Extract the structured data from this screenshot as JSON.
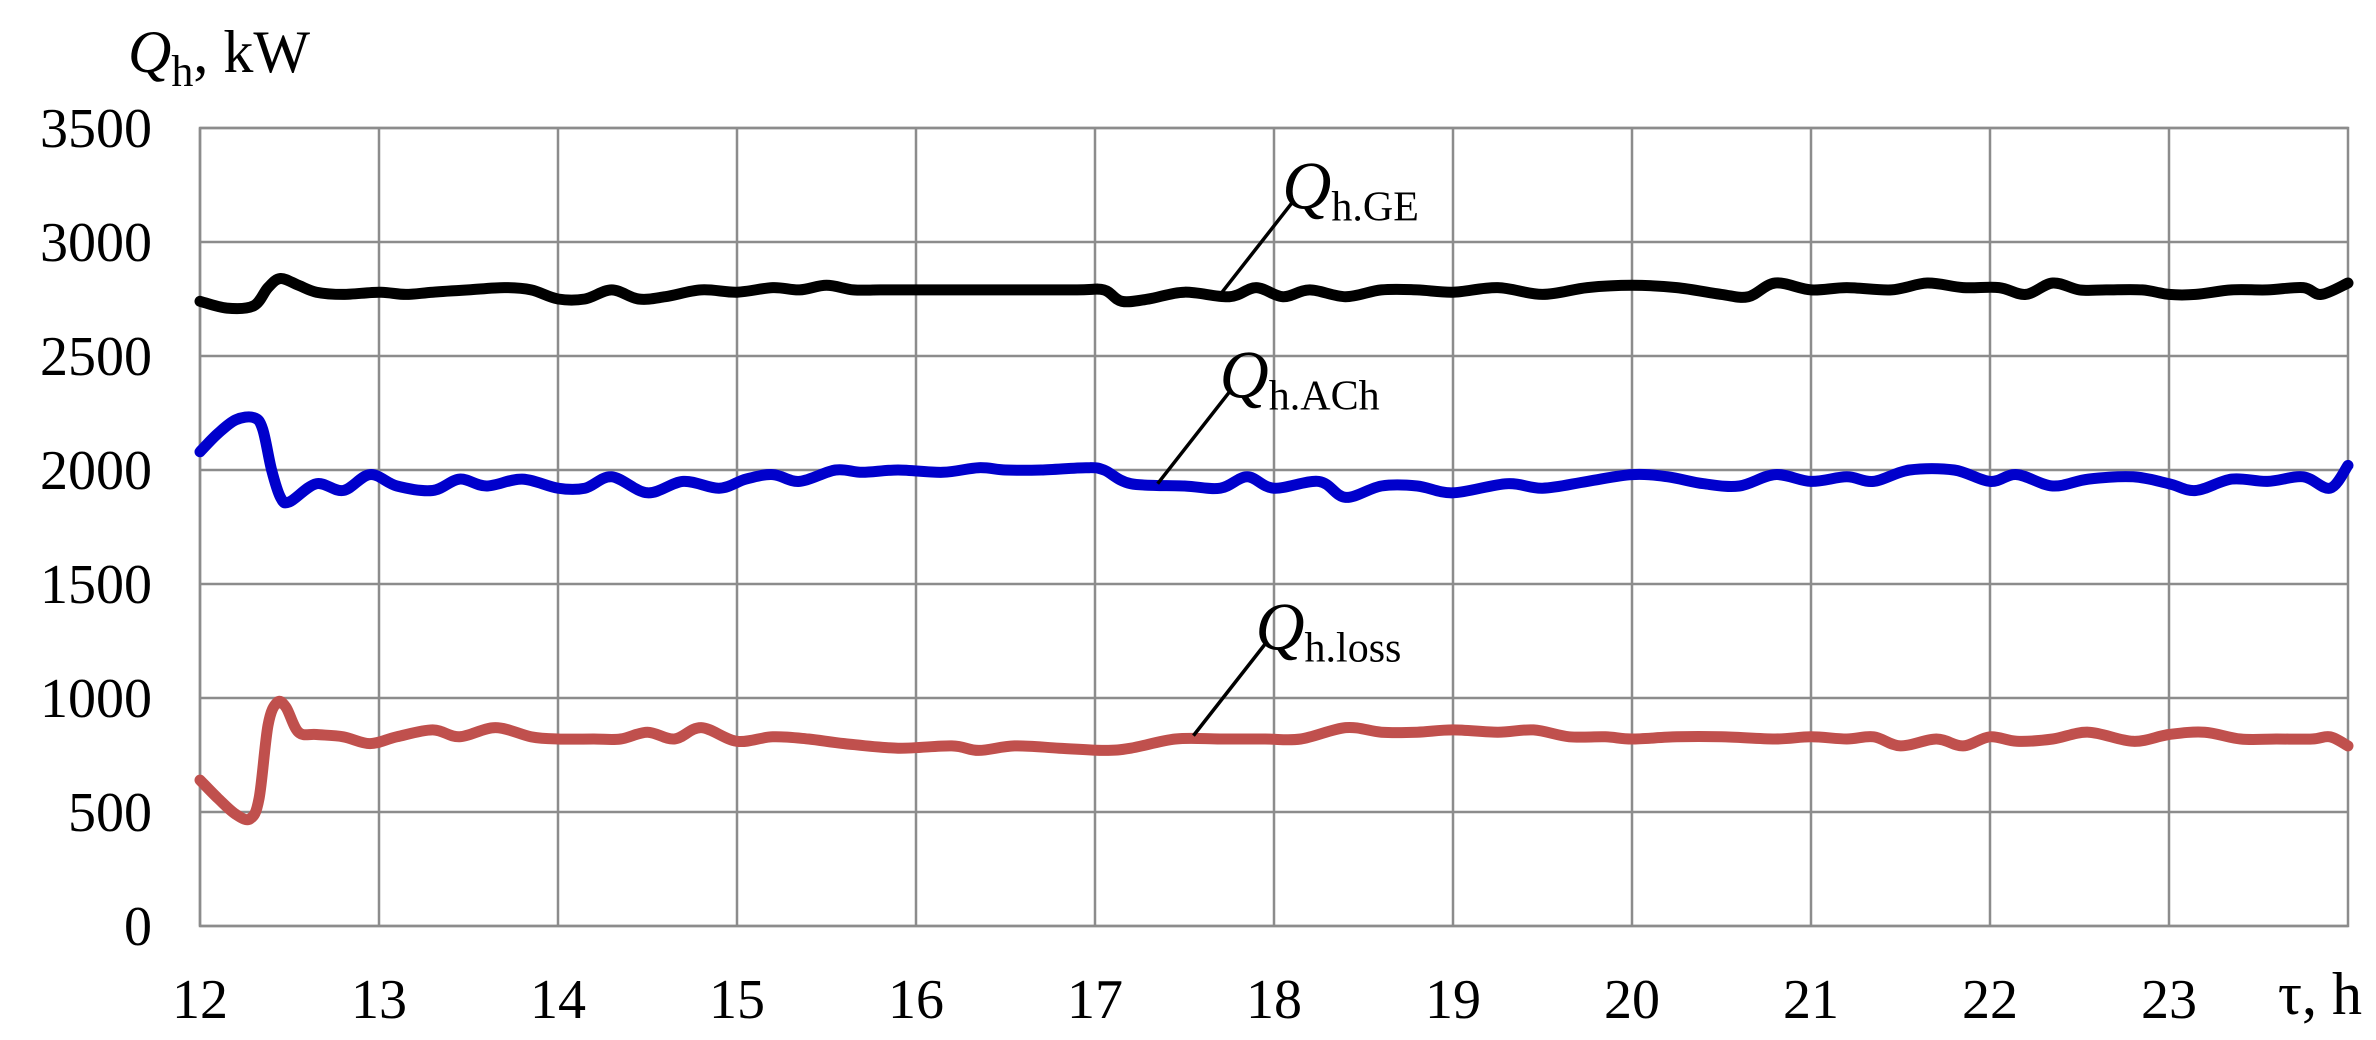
{
  "chart_data": {
    "type": "line",
    "ylabel": {
      "symbol": "Q",
      "subscript": "h",
      "unit": ", kW"
    },
    "xlabel": "τ, h",
    "xlim": [
      12,
      24
    ],
    "ylim": [
      0,
      3500
    ],
    "x_ticks": [
      "12",
      "13",
      "14",
      "15",
      "16",
      "17",
      "18",
      "19",
      "20",
      "21",
      "22",
      "23"
    ],
    "y_ticks": [
      "0",
      "500",
      "1000",
      "1500",
      "2000",
      "2500",
      "3000",
      "3500"
    ],
    "grid": true,
    "legend": "inline-labels",
    "series": [
      {
        "name": "Q_h.GE",
        "label_symbol": "Q",
        "label_subscript": "h.GE",
        "color": "#000000",
        "label_anchor": [
          17.7,
          2770
        ],
        "x": [
          12.0,
          12.15,
          12.3,
          12.38,
          12.45,
          12.55,
          12.65,
          12.8,
          13.0,
          13.15,
          13.3,
          13.5,
          13.7,
          13.85,
          14.0,
          14.15,
          14.3,
          14.45,
          14.6,
          14.8,
          15.0,
          15.2,
          15.35,
          15.5,
          15.65,
          15.8,
          16.0,
          16.5,
          16.9,
          17.05,
          17.15,
          17.3,
          17.5,
          17.75,
          17.9,
          18.05,
          18.2,
          18.4,
          18.6,
          18.8,
          19.0,
          19.25,
          19.5,
          19.75,
          20.0,
          20.25,
          20.5,
          20.65,
          20.8,
          21.0,
          21.2,
          21.45,
          21.65,
          21.85,
          22.05,
          22.2,
          22.35,
          22.5,
          22.65,
          22.85,
          23.0,
          23.15,
          23.35,
          23.55,
          23.75,
          23.85,
          24.0
        ],
        "y": [
          2740,
          2710,
          2720,
          2800,
          2840,
          2810,
          2780,
          2770,
          2780,
          2770,
          2780,
          2790,
          2800,
          2790,
          2750,
          2750,
          2790,
          2750,
          2760,
          2790,
          2780,
          2800,
          2790,
          2810,
          2790,
          2790,
          2790,
          2790,
          2790,
          2790,
          2740,
          2750,
          2780,
          2760,
          2800,
          2760,
          2790,
          2760,
          2790,
          2790,
          2780,
          2800,
          2770,
          2800,
          2810,
          2800,
          2770,
          2760,
          2820,
          2790,
          2800,
          2790,
          2820,
          2800,
          2800,
          2770,
          2820,
          2790,
          2790,
          2790,
          2770,
          2770,
          2790,
          2790,
          2800,
          2770,
          2820
        ]
      },
      {
        "name": "Q_h.ACh",
        "label_symbol": "Q",
        "label_subscript": "h.ACh",
        "color": "#0000cc",
        "label_anchor": [
          17.35,
          1940
        ],
        "x": [
          12.0,
          12.1,
          12.2,
          12.3,
          12.35,
          12.4,
          12.45,
          12.5,
          12.65,
          12.8,
          12.95,
          13.1,
          13.3,
          13.45,
          13.6,
          13.8,
          14.0,
          14.15,
          14.3,
          14.5,
          14.7,
          14.9,
          15.05,
          15.2,
          15.35,
          15.55,
          15.7,
          15.9,
          16.15,
          16.35,
          16.5,
          16.7,
          16.95,
          17.05,
          17.2,
          17.5,
          17.7,
          17.85,
          18.0,
          18.25,
          18.4,
          18.6,
          18.8,
          19.0,
          19.3,
          19.5,
          19.75,
          20.0,
          20.2,
          20.4,
          20.6,
          20.8,
          21.0,
          21.2,
          21.35,
          21.55,
          21.8,
          22.0,
          22.15,
          22.35,
          22.55,
          22.8,
          23.0,
          23.15,
          23.35,
          23.55,
          23.75,
          23.9,
          24.0
        ],
        "y": [
          2080,
          2160,
          2220,
          2230,
          2180,
          2000,
          1880,
          1860,
          1940,
          1910,
          1980,
          1930,
          1910,
          1960,
          1930,
          1960,
          1920,
          1920,
          1970,
          1900,
          1950,
          1920,
          1960,
          1980,
          1950,
          2000,
          1990,
          2000,
          1990,
          2010,
          2000,
          2000,
          2010,
          2000,
          1940,
          1930,
          1920,
          1970,
          1920,
          1950,
          1880,
          1930,
          1930,
          1900,
          1940,
          1920,
          1950,
          1980,
          1970,
          1940,
          1930,
          1980,
          1950,
          1970,
          1950,
          2000,
          2000,
          1950,
          1980,
          1930,
          1960,
          1970,
          1940,
          1910,
          1960,
          1950,
          1970,
          1920,
          2020
        ]
      },
      {
        "name": "Q_h.loss",
        "label_symbol": "Q",
        "label_subscript": "h.loss",
        "color": "#c0504d",
        "label_anchor": [
          17.55,
          835
        ],
        "x": [
          12.0,
          12.1,
          12.2,
          12.28,
          12.33,
          12.38,
          12.43,
          12.48,
          12.55,
          12.65,
          12.8,
          12.95,
          13.1,
          13.3,
          13.45,
          13.65,
          13.85,
          14.0,
          14.2,
          14.35,
          14.5,
          14.65,
          14.8,
          15.0,
          15.2,
          15.4,
          15.6,
          15.9,
          16.2,
          16.35,
          16.55,
          16.8,
          17.05,
          17.2,
          17.45,
          17.7,
          17.95,
          18.15,
          18.4,
          18.6,
          18.8,
          19.0,
          19.25,
          19.45,
          19.65,
          19.85,
          20.0,
          20.25,
          20.5,
          20.8,
          21.0,
          21.2,
          21.35,
          21.5,
          21.7,
          21.85,
          22.0,
          22.15,
          22.35,
          22.55,
          22.8,
          23.0,
          23.2,
          23.4,
          23.6,
          23.8,
          23.9,
          24.0
        ],
        "y": [
          640,
          560,
          490,
          470,
          560,
          880,
          980,
          960,
          850,
          840,
          830,
          800,
          830,
          860,
          830,
          870,
          830,
          820,
          820,
          820,
          850,
          820,
          870,
          810,
          830,
          820,
          800,
          780,
          790,
          770,
          790,
          780,
          770,
          780,
          820,
          820,
          820,
          820,
          870,
          850,
          850,
          860,
          850,
          860,
          830,
          830,
          820,
          830,
          830,
          820,
          830,
          820,
          830,
          790,
          820,
          790,
          830,
          810,
          820,
          850,
          810,
          840,
          850,
          820,
          820,
          820,
          830,
          790
        ]
      }
    ]
  }
}
